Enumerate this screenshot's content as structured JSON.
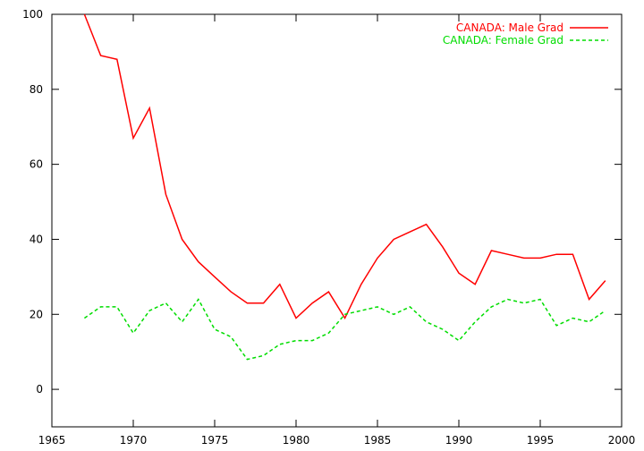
{
  "chart_data": {
    "type": "line",
    "title": "",
    "xlabel": "",
    "ylabel": "",
    "xlim": [
      1965,
      2000
    ],
    "ylim": [
      -10,
      100
    ],
    "xticks": [
      "1965",
      "1970",
      "1975",
      "1980",
      "1985",
      "1990",
      "1995",
      "2000"
    ],
    "yticks": [
      "0",
      "20",
      "40",
      "60",
      "80",
      "100"
    ],
    "grid": false,
    "legend_position": "top-right",
    "series": [
      {
        "name": "CANADA: Male Grad",
        "color": "#ff0000",
        "dash": "solid",
        "x": [
          1967,
          1968,
          1969,
          1970,
          1971,
          1972,
          1973,
          1974,
          1975,
          1976,
          1977,
          1978,
          1979,
          1980,
          1981,
          1982,
          1983,
          1984,
          1985,
          1986,
          1987,
          1988,
          1989,
          1990,
          1991,
          1992,
          1993,
          1994,
          1995,
          1996,
          1997,
          1998,
          1999
        ],
        "values": [
          100,
          89,
          88,
          67,
          75,
          52,
          40,
          34,
          30,
          26,
          23,
          23,
          28,
          19,
          23,
          26,
          19,
          28,
          35,
          40,
          42,
          44,
          38,
          31,
          28,
          37,
          36,
          35,
          35,
          36,
          36,
          24,
          29
        ]
      },
      {
        "name": "CANADA: Female Grad",
        "color": "#00dd00",
        "dash": "dashed",
        "x": [
          1967,
          1968,
          1969,
          1970,
          1971,
          1972,
          1973,
          1974,
          1975,
          1976,
          1977,
          1978,
          1979,
          1980,
          1981,
          1982,
          1983,
          1984,
          1985,
          1986,
          1987,
          1988,
          1989,
          1990,
          1991,
          1992,
          1993,
          1994,
          1995,
          1996,
          1997,
          1998,
          1999
        ],
        "values": [
          19,
          22,
          22,
          15,
          21,
          23,
          18,
          24,
          16,
          14,
          8,
          9,
          12,
          13,
          13,
          15,
          20,
          21,
          22,
          20,
          22,
          18,
          16,
          13,
          18,
          22,
          24,
          23,
          24,
          17,
          19,
          18,
          21
        ]
      }
    ]
  }
}
